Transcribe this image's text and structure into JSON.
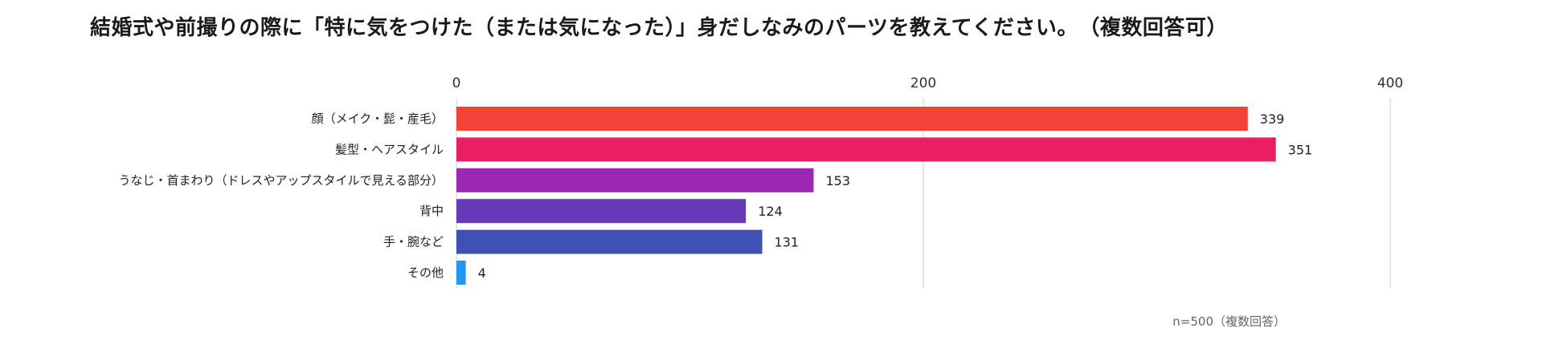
{
  "title": "結婚式や前撮りの際に「特に気をつけた（または気になった）」身だしなみのパーツを教えてください。　（複数回答可）",
  "note": "n=500（複数回答）",
  "chart_data": {
    "type": "bar",
    "orientation": "horizontal",
    "title": "結婚式や前撮りの際に「特に気をつけた（または気になった）」身だしなみのパーツを教えてください。　（複数回答可）",
    "categories": [
      "顔（メイク・髭・産毛）",
      "髪型・ヘアスタイル",
      "うなじ・首まわり（ドレスやアップスタイルで見える部分）",
      "背中",
      "手・腕など",
      "その他"
    ],
    "values": [
      339,
      351,
      153,
      124,
      131,
      4
    ],
    "colors": [
      "#f44336",
      "#e91e63",
      "#9c27b0",
      "#673ab7",
      "#3f51b5",
      "#2196f3"
    ],
    "xlim": [
      0,
      400
    ],
    "xticks": [
      0,
      200,
      400
    ],
    "xaxis_position": "top",
    "grid": true,
    "data_labels": true
  }
}
